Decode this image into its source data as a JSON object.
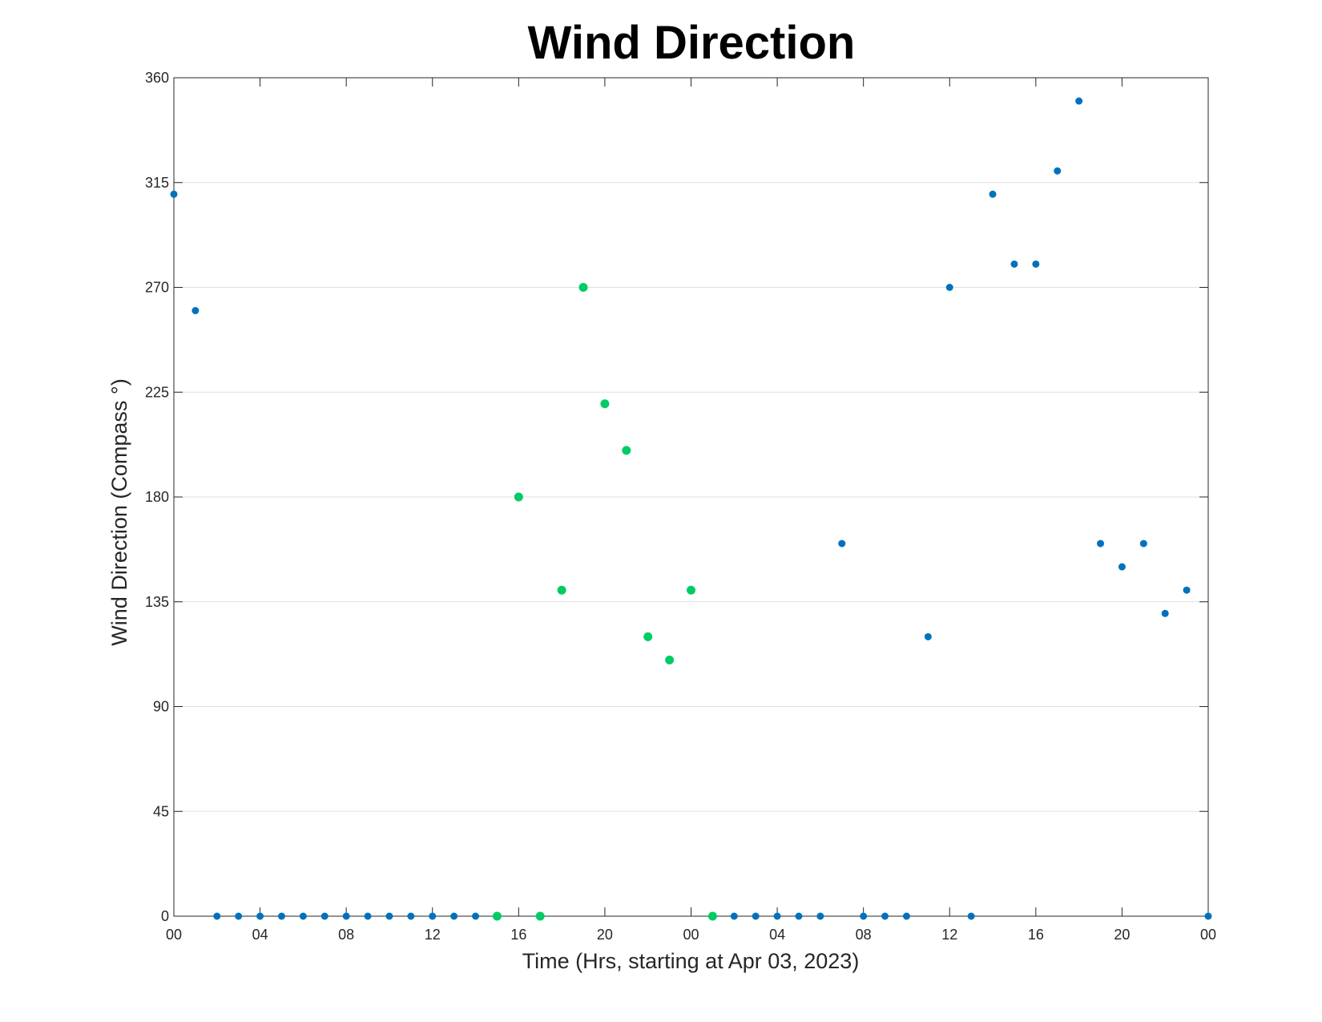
{
  "chart_data": {
    "type": "scatter",
    "title": "Wind Direction",
    "xlabel": "Time (Hrs, starting at Apr 03, 2023)",
    "ylabel": "Wind Direction (Compass °)",
    "ylim": [
      0,
      360
    ],
    "xlim": [
      "2023-04-03 00:00",
      "2023-04-05 00:00"
    ],
    "x_tick_labels": [
      "00",
      "04",
      "08",
      "12",
      "16",
      "20",
      "00",
      "04",
      "08",
      "12",
      "16",
      "20",
      "00"
    ],
    "y_ticks": [
      0,
      45,
      90,
      135,
      180,
      225,
      270,
      315,
      360
    ],
    "grid": "horizontal",
    "legend": "none",
    "colors": {
      "blue": "#0072bd",
      "green": "#00cc66",
      "axis": "#262626",
      "grid": "#e0e0e0"
    },
    "series": [
      {
        "color": "blue",
        "x": [
          "2023-04-03 00:00",
          "2023-04-03 01:00",
          "2023-04-03 02:00",
          "2023-04-03 03:00",
          "2023-04-03 04:00",
          "2023-04-03 05:00",
          "2023-04-03 06:00",
          "2023-04-03 07:00",
          "2023-04-03 08:00",
          "2023-04-03 09:00",
          "2023-04-03 10:00",
          "2023-04-03 11:00",
          "2023-04-03 12:00",
          "2023-04-03 13:00",
          "2023-04-03 14:00",
          "2023-04-04 02:00",
          "2023-04-04 03:00",
          "2023-04-04 04:00",
          "2023-04-04 05:00",
          "2023-04-04 06:00",
          "2023-04-04 07:00",
          "2023-04-04 08:00",
          "2023-04-04 09:00",
          "2023-04-04 10:00",
          "2023-04-04 11:00",
          "2023-04-04 12:00",
          "2023-04-04 13:00",
          "2023-04-04 14:00",
          "2023-04-04 15:00",
          "2023-04-04 16:00",
          "2023-04-04 17:00",
          "2023-04-04 18:00",
          "2023-04-04 19:00",
          "2023-04-04 20:00",
          "2023-04-04 21:00",
          "2023-04-04 22:00",
          "2023-04-04 23:00",
          "2023-04-05 00:00"
        ],
        "y": [
          310,
          260,
          0,
          0,
          0,
          0,
          0,
          0,
          0,
          0,
          0,
          0,
          0,
          0,
          0,
          0,
          0,
          0,
          0,
          0,
          160,
          0,
          0,
          0,
          120,
          270,
          0,
          310,
          280,
          280,
          320,
          350,
          160,
          150,
          160,
          130,
          140,
          0
        ]
      },
      {
        "color": "green",
        "x": [
          "2023-04-03 15:00",
          "2023-04-03 16:00",
          "2023-04-03 17:00",
          "2023-04-03 18:00",
          "2023-04-03 19:00",
          "2023-04-03 20:00",
          "2023-04-03 21:00",
          "2023-04-03 22:00",
          "2023-04-03 23:00",
          "2023-04-04 00:00",
          "2023-04-04 01:00"
        ],
        "y": [
          0,
          180,
          0,
          140,
          270,
          220,
          200,
          120,
          110,
          140,
          0
        ]
      }
    ]
  }
}
